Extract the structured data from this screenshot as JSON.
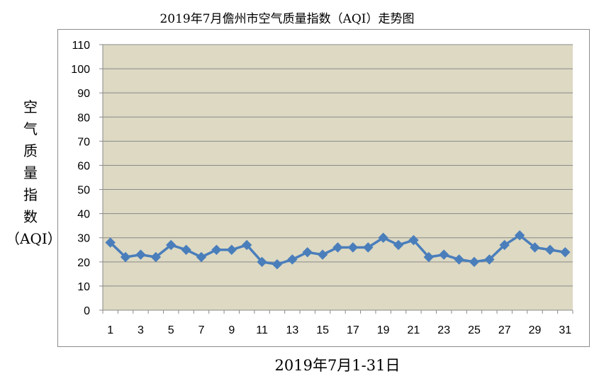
{
  "chart_data": {
    "type": "line",
    "title": "2019年7月儋州市空气质量指数（AQI）走势图",
    "ylabel": "空气质量指数（AQI）",
    "xlabel": "2019年7月1-31日",
    "ylim": [
      0,
      110
    ],
    "ytick_step": 10,
    "x": [
      1,
      2,
      3,
      4,
      5,
      6,
      7,
      8,
      9,
      10,
      11,
      12,
      13,
      14,
      15,
      16,
      17,
      18,
      19,
      20,
      21,
      22,
      23,
      24,
      25,
      26,
      27,
      28,
      29,
      30,
      31
    ],
    "xtick_labels": [
      "1",
      "3",
      "5",
      "7",
      "9",
      "11",
      "13",
      "15",
      "17",
      "19",
      "21",
      "23",
      "25",
      "27",
      "29",
      "31"
    ],
    "series": [
      {
        "values": [
          28,
          22,
          23,
          22,
          27,
          25,
          22,
          25,
          25,
          27,
          20,
          19,
          21,
          24,
          23,
          26,
          26,
          26,
          30,
          27,
          29,
          22,
          23,
          21,
          20,
          21,
          27,
          31,
          26,
          25,
          24
        ]
      }
    ],
    "grid": true,
    "colors": {
      "line": "#4a7ebb",
      "plot_bg": "#ddd9c3",
      "grid": "#8a8a8a"
    }
  }
}
